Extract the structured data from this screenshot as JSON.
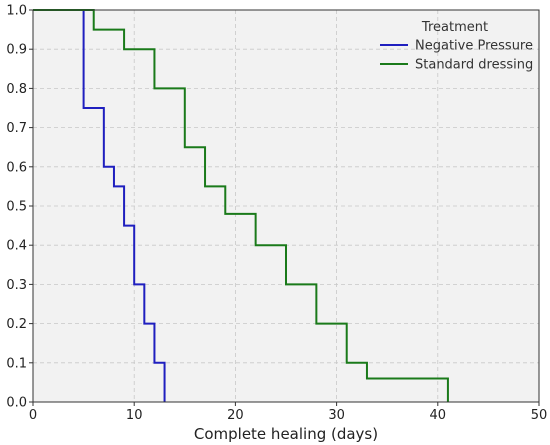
{
  "chart_data": {
    "type": "line",
    "step": "post",
    "xlabel": "Complete healing (days)",
    "ylabel": "",
    "xlim": [
      0,
      50
    ],
    "ylim": [
      0,
      1.0
    ],
    "xticks": [
      0,
      10,
      20,
      30,
      40,
      50
    ],
    "yticks": [
      0.0,
      0.1,
      0.2,
      0.3,
      0.4,
      0.5,
      0.6,
      0.7,
      0.8,
      0.9,
      1.0
    ],
    "grid": true,
    "legend": {
      "title": "Treatment",
      "placement": "top-right"
    },
    "colors": {
      "background": "#f2f2f2",
      "frame": "#333333"
    },
    "series": [
      {
        "name": "Negative Pressure",
        "color": "#1f1fbf",
        "x": [
          0,
          5,
          7,
          8,
          9,
          10,
          11,
          12,
          13
        ],
        "y": [
          1.0,
          0.75,
          0.6,
          0.55,
          0.45,
          0.3,
          0.2,
          0.1,
          0.0
        ]
      },
      {
        "name": "Standard dressing",
        "color": "#1a7a1a",
        "x": [
          0,
          6,
          9,
          12,
          15,
          17,
          19,
          22,
          25,
          28,
          31,
          33,
          41
        ],
        "y": [
          1.0,
          0.95,
          0.9,
          0.8,
          0.65,
          0.55,
          0.48,
          0.4,
          0.3,
          0.2,
          0.1,
          0.06,
          0.0
        ]
      }
    ]
  }
}
